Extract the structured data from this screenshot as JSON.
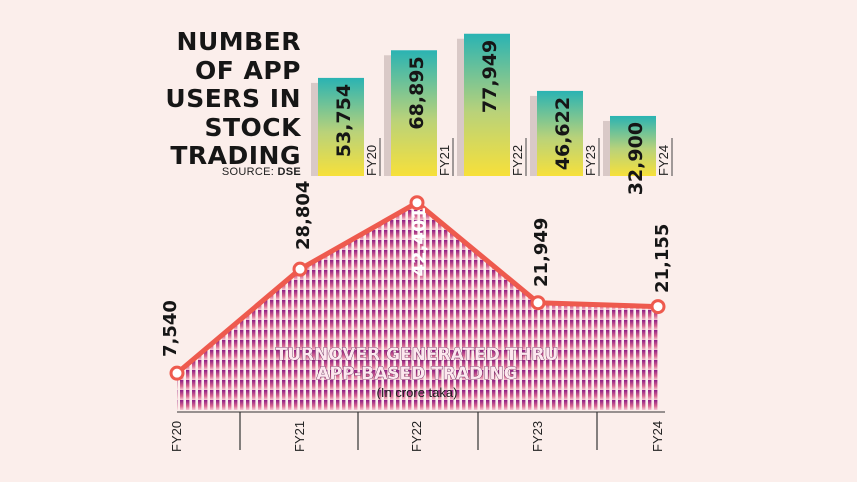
{
  "title_lines": [
    "NUMBER",
    "OF APP",
    "USERS IN",
    "STOCK",
    "TRADING"
  ],
  "source": {
    "label": "SOURCE:",
    "value": "DSE"
  },
  "colors": {
    "background": "#fbeeeb",
    "bar_top": "#2ab3b3",
    "bar_bottom": "#f7e03a",
    "line": "#ee5a4e",
    "area_top": "#8b1d86",
    "area_bottom": "#f6c7d4"
  },
  "chart_data": [
    {
      "type": "bar",
      "title": "NUMBER OF APP USERS IN STOCK TRADING",
      "categories": [
        "FY20",
        "FY21",
        "FY22",
        "FY23",
        "FY24"
      ],
      "values": [
        53754,
        68895,
        77949,
        46622,
        32900
      ],
      "labels": [
        "53,754",
        "68,895",
        "77,949",
        "46,622",
        "32,900"
      ],
      "ylim": [
        0,
        80000
      ]
    },
    {
      "type": "area",
      "title": "TURNOVER GENERATED THRU APP-BASED TRADING",
      "subtitle": "(In crore taka)",
      "categories": [
        "FY20",
        "FY21",
        "FY22",
        "FY23",
        "FY24"
      ],
      "values": [
        7540,
        28804,
        42401,
        21949,
        21155
      ],
      "labels": [
        "7,540",
        "28,804",
        "42,401",
        "21,949",
        "21,155"
      ],
      "ylim": [
        0,
        45000
      ]
    }
  ]
}
